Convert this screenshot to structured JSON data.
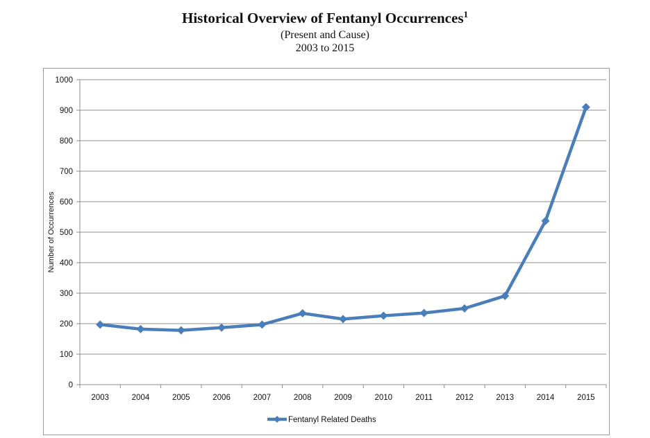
{
  "header": {
    "title": "Historical Overview of Fentanyl Occurrences",
    "footnote": "1",
    "subtitle": "(Present and Cause)",
    "range": "2003 to 2015"
  },
  "chart_data": {
    "type": "line",
    "title": "Historical Overview of Fentanyl Occurrences",
    "xlabel": "",
    "ylabel": "Number of Occurrences",
    "x": [
      "2003",
      "2004",
      "2005",
      "2006",
      "2007",
      "2008",
      "2009",
      "2010",
      "2011",
      "2012",
      "2013",
      "2014",
      "2015"
    ],
    "ylim": [
      0,
      1000
    ],
    "yticks": [
      0,
      100,
      200,
      300,
      400,
      500,
      600,
      700,
      800,
      900,
      1000
    ],
    "grid": true,
    "legend": "bottom",
    "series": [
      {
        "name": "Fentanyl Related Deaths",
        "color": "#4a7ebb",
        "values": [
          197,
          182,
          178,
          187,
          197,
          234,
          215,
          226,
          235,
          250,
          291,
          537,
          910
        ]
      }
    ]
  }
}
